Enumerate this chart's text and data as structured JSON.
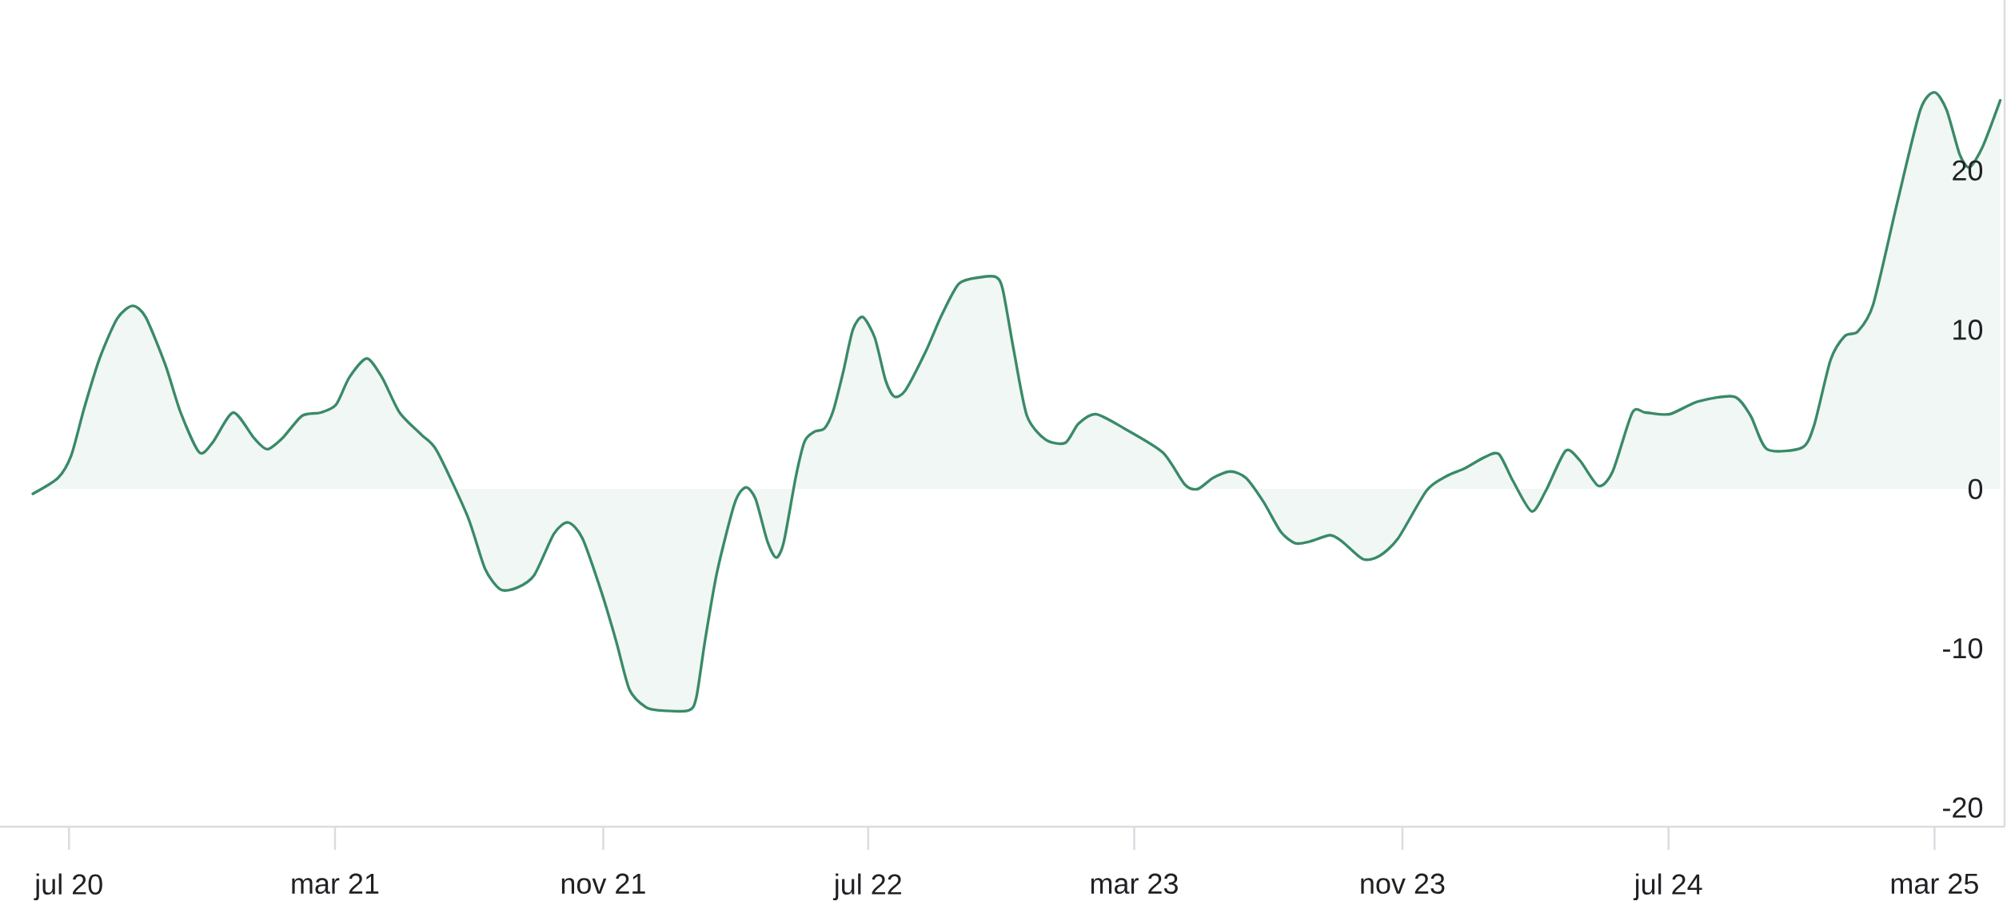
{
  "chart_data": {
    "type": "area",
    "color": "#3a8a68",
    "line_style": "solid",
    "x": [
      "2020-05-29",
      "2020-06-21",
      "2020-07-03",
      "2020-07-15",
      "2020-07-29",
      "2020-08-14",
      "2020-08-28",
      "2020-09-09",
      "2020-09-27",
      "2020-10-11",
      "2020-10-28",
      "2020-11-09",
      "2020-11-28",
      "2020-12-17",
      "2020-12-29",
      "2021-01-12",
      "2021-01-30",
      "2021-02-16",
      "2021-03-02",
      "2021-03-14",
      "2021-03-30",
      "2021-04-13",
      "2021-04-29",
      "2021-05-19",
      "2021-06-02",
      "2021-06-30",
      "2021-07-16",
      "2021-07-30",
      "2021-08-14",
      "2021-08-30",
      "2021-09-17",
      "2021-09-30",
      "2021-10-13",
      "2021-10-31",
      "2021-11-13",
      "2021-11-25",
      "2021-12-10",
      "2021-12-23",
      "2022-01-18",
      "2022-01-25",
      "2022-02-02",
      "2022-02-13",
      "2022-03-01",
      "2022-03-11",
      "2022-03-20",
      "2022-03-31",
      "2022-04-08",
      "2022-04-15",
      "2022-04-26",
      "2022-05-04",
      "2022-05-13",
      "2022-05-22",
      "2022-05-30",
      "2022-06-08",
      "2022-06-17",
      "2022-06-26",
      "2022-07-07",
      "2022-07-17",
      "2022-07-25",
      "2022-08-04",
      "2022-08-23",
      "2022-09-06",
      "2022-09-22",
      "2022-10-12",
      "2022-10-26",
      "2022-11-01",
      "2022-11-11",
      "2022-11-23",
      "2022-12-10",
      "2022-12-28",
      "2023-01-09",
      "2023-01-25",
      "2023-02-20",
      "2023-03-27",
      "2023-04-16",
      "2023-04-28",
      "2023-05-12",
      "2023-05-28",
      "2023-06-11",
      "2023-06-27",
      "2023-07-13",
      "2023-07-26",
      "2023-08-08",
      "2023-08-27",
      "2023-09-07",
      "2023-09-26",
      "2023-10-11",
      "2023-10-28",
      "2023-11-23",
      "2023-12-11",
      "2023-12-28",
      "2024-01-15",
      "2024-01-28",
      "2024-02-10",
      "2024-02-27",
      "2024-03-11",
      "2024-03-29",
      "2024-04-11",
      "2024-04-28",
      "2024-05-11",
      "2024-05-29",
      "2024-06-10",
      "2024-07-02",
      "2024-07-28",
      "2024-08-30",
      "2024-09-14",
      "2024-09-29",
      "2024-10-31",
      "2024-11-11",
      "2024-11-26",
      "2024-12-09",
      "2024-12-21",
      "2025-01-04",
      "2025-01-26",
      "2025-02-16",
      "2025-03-01",
      "2025-03-12",
      "2025-03-24",
      "2025-04-02",
      "2025-04-14",
      "2025-04-30"
    ],
    "values": [
      -0.3,
      0.7,
      2.1,
      5.1,
      8.2,
      10.7,
      11.5,
      10.8,
      7.8,
      4.8,
      2.3,
      2.9,
      4.8,
      3.2,
      2.5,
      3.2,
      4.6,
      4.8,
      5.3,
      7.0,
      8.2,
      7.0,
      4.8,
      3.4,
      2.4,
      -1.7,
      -5.0,
      -6.3,
      -6.2,
      -5.4,
      -2.8,
      -2.1,
      -3.1,
      -6.6,
      -9.6,
      -12.6,
      -13.7,
      -13.9,
      -13.9,
      -13.1,
      -9.5,
      -5.2,
      -0.9,
      0.1,
      -0.6,
      -3.3,
      -4.3,
      -3.3,
      0.8,
      3.0,
      3.6,
      3.8,
      4.9,
      7.3,
      10.0,
      10.8,
      9.5,
      6.8,
      5.8,
      6.2,
      8.7,
      10.9,
      12.9,
      13.3,
      13.3,
      12.5,
      8.7,
      4.6,
      3.1,
      2.9,
      4.1,
      4.7,
      3.8,
      2.3,
      0.3,
      0.0,
      0.7,
      1.1,
      0.7,
      -0.8,
      -2.7,
      -3.4,
      -3.3,
      -2.9,
      -3.3,
      -4.4,
      -4.2,
      -3.1,
      -0.1,
      0.8,
      1.3,
      2.0,
      2.2,
      0.5,
      -1.4,
      -0.1,
      2.4,
      1.8,
      0.2,
      1.1,
      4.8,
      4.8,
      4.7,
      5.5,
      5.8,
      4.6,
      2.5,
      2.6,
      4.0,
      8.1,
      9.6,
      9.9,
      11.6,
      18.0,
      23.8,
      24.9,
      23.8,
      21.0,
      20.2,
      21.5,
      24.4
    ],
    "xlim": [
      "2020-04-29",
      "2025-05-04"
    ],
    "ylim": [
      -21.2,
      30.7
    ],
    "xticks": [
      {
        "value": "2020-07-01",
        "label": "jul 20"
      },
      {
        "value": "2021-03-01",
        "label": "mar 21"
      },
      {
        "value": "2021-11-01",
        "label": "nov 21"
      },
      {
        "value": "2022-07-01",
        "label": "jul 22"
      },
      {
        "value": "2023-03-01",
        "label": "mar 23"
      },
      {
        "value": "2023-11-01",
        "label": "nov 23"
      },
      {
        "value": "2024-07-01",
        "label": "jul 24"
      },
      {
        "value": "2025-03-01",
        "label": "mar 25"
      }
    ],
    "yticks": [
      -20,
      -10,
      0,
      10,
      20
    ]
  }
}
